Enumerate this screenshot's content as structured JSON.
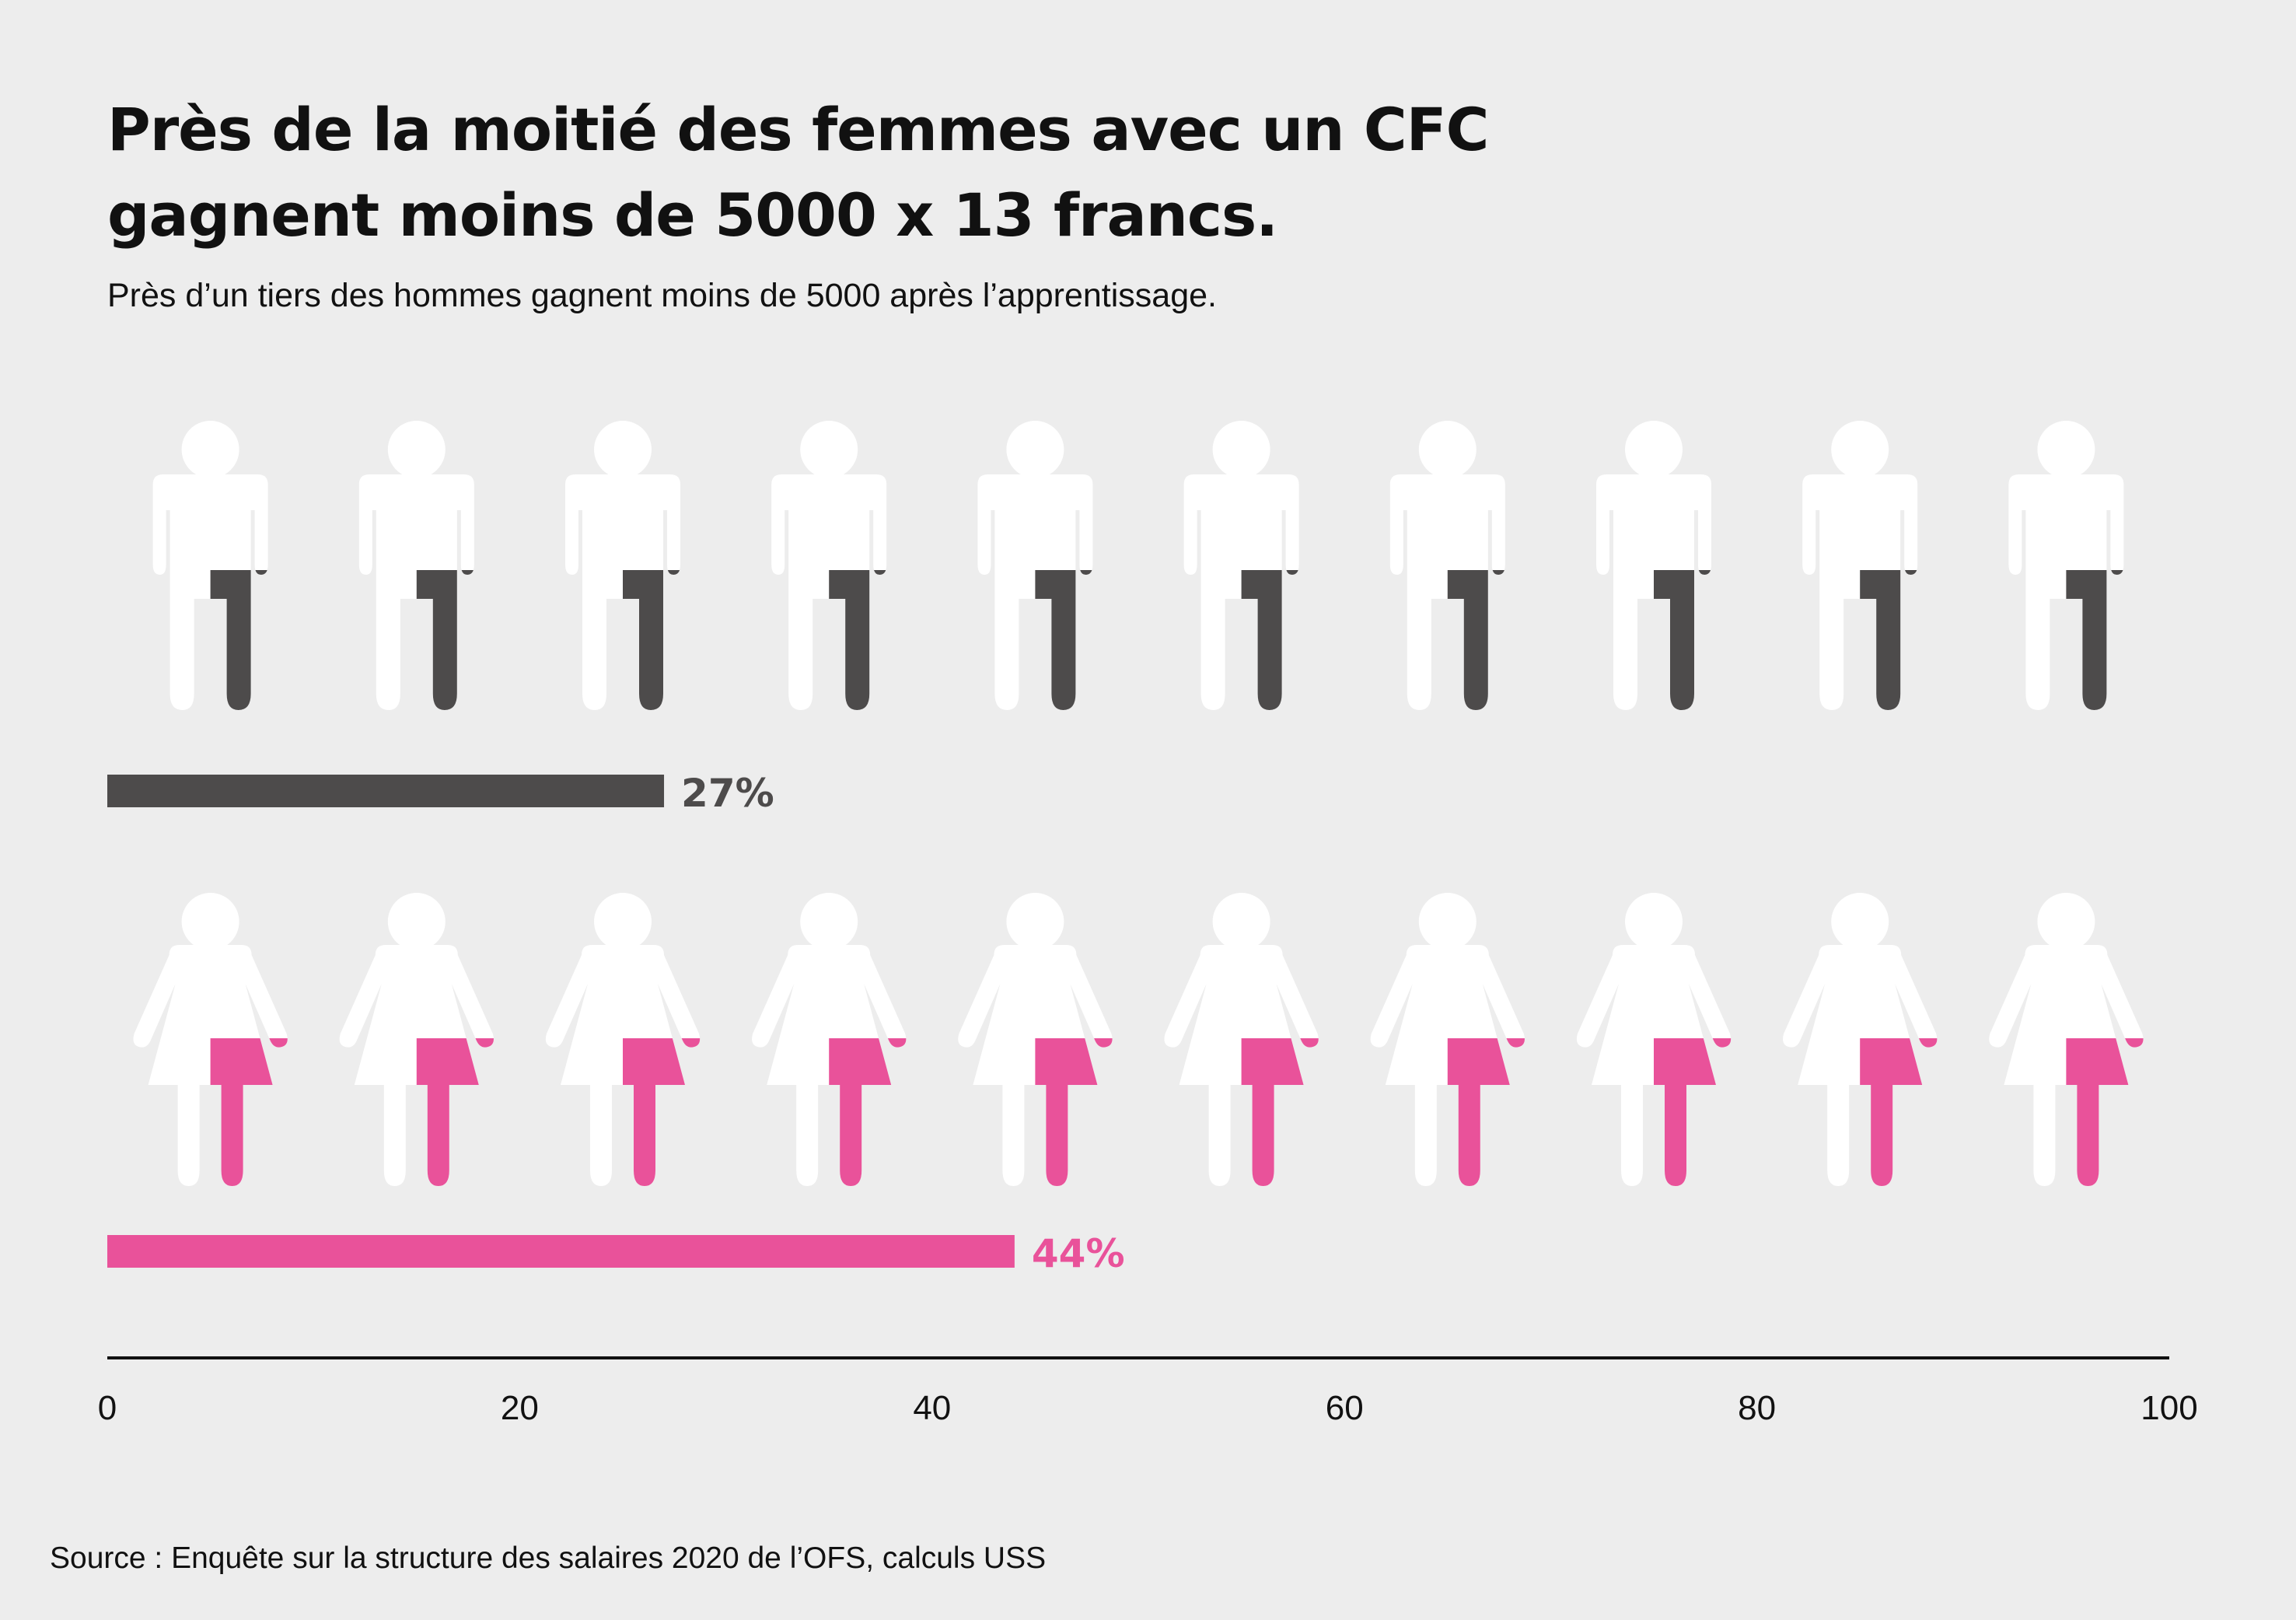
{
  "title_line1": "Près de la moitié des femmes avec un CFC",
  "title_line2": "gagnent moins de 5000 x 13 francs.",
  "subtitle": "Près d’un tiers des hommes gagnent moins de 5000 après l’apprentissage.",
  "source": "Source : Enquête sur la structure des salaires 2020 de l’OFS, calculs USS",
  "colors": {
    "background": "#ededed",
    "men": "#4d4b4b",
    "women": "#e9529a",
    "icon_empty": "#ffffff",
    "text": "#111111"
  },
  "chart_data": {
    "type": "bar",
    "orientation": "horizontal",
    "icons_per_row": 10,
    "series": [
      {
        "name": "hommes",
        "icon": "man-icon",
        "value": 27,
        "label": "27%"
      },
      {
        "name": "femmes",
        "icon": "woman-icon",
        "value": 44,
        "label": "44%"
      }
    ],
    "xlim": [
      0,
      100
    ],
    "xticks": [
      0,
      20,
      40,
      60,
      80,
      100
    ],
    "grid": false
  }
}
